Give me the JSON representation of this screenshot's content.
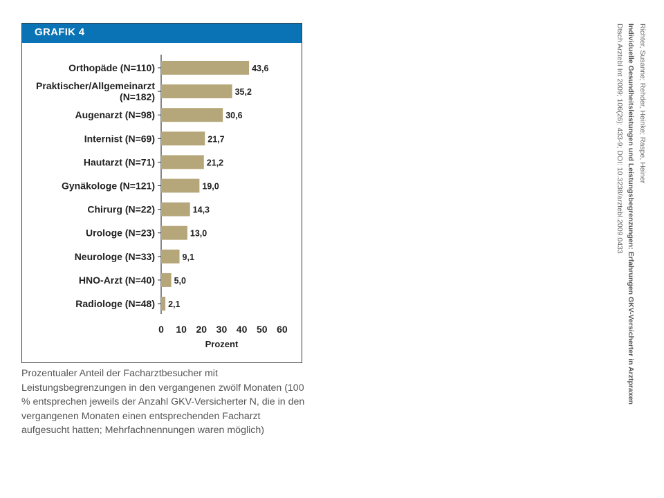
{
  "header": {
    "title": "GRAFIK 4"
  },
  "chart_data": {
    "type": "bar",
    "orientation": "horizontal",
    "categories": [
      "Orthopäde (N=110)",
      "Praktischer/Allgemeinarzt (N=182)",
      "Augenarzt (N=98)",
      "Internist (N=69)",
      "Hautarzt (N=71)",
      "Gynäkologe (N=121)",
      "Chirurg (N=22)",
      "Urologe (N=23)",
      "Neurologe (N=33)",
      "HNO-Arzt (N=40)",
      "Radiologe (N=48)"
    ],
    "category_lines": [
      [
        "Orthopäde (N=110)"
      ],
      [
        "Praktischer/Allgemeinarzt",
        "(N=182)"
      ],
      [
        "Augenarzt (N=98)"
      ],
      [
        "Internist (N=69)"
      ],
      [
        "Hautarzt (N=71)"
      ],
      [
        "Gynäkologe (N=121)"
      ],
      [
        "Chirurg (N=22)"
      ],
      [
        "Urologe (N=23)"
      ],
      [
        "Neurologe (N=33)"
      ],
      [
        "HNO-Arzt (N=40)"
      ],
      [
        "Radiologe (N=48)"
      ]
    ],
    "values": [
      43.6,
      35.2,
      30.6,
      21.7,
      21.2,
      19.0,
      14.3,
      13.0,
      9.1,
      5.0,
      2.1
    ],
    "value_labels": [
      "43,6",
      "35,2",
      "30,6",
      "21,7",
      "21,2",
      "19,0",
      "14,3",
      "13,0",
      "9,1",
      "5,0",
      "2,1"
    ],
    "xticks": [
      "0",
      "10",
      "20",
      "30",
      "40",
      "50",
      "60"
    ],
    "xlim": [
      0,
      60
    ],
    "xlabel": "Prozent",
    "grid": false,
    "bar_color": "#b5a77a"
  },
  "caption": "Prozentualer Anteil der Facharztbesucher mit Leistungsbegrenzungen in den vergangenen zwölf Monaten (100 % entsprechen jeweils der Anzahl GKV-Versicherter N, die in den vergangenen Monaten einen entsprechenden Facharzt aufgesucht hatten; Mehrfachnennungen waren möglich)",
  "citation": {
    "authors": "Richter, Susanne; Rehder, Heinke; Raspe, Heiner",
    "title": "Individuelle Gesundheitsleistungen und Leistungsbegrenzungen: Erfahrungen GKV-Versicherter in Arztpraxen",
    "source": "Dtsch Arztebl Int 2009; 106(26): 433-9; DOI: 10.3238/arztebl.2009.0433"
  }
}
